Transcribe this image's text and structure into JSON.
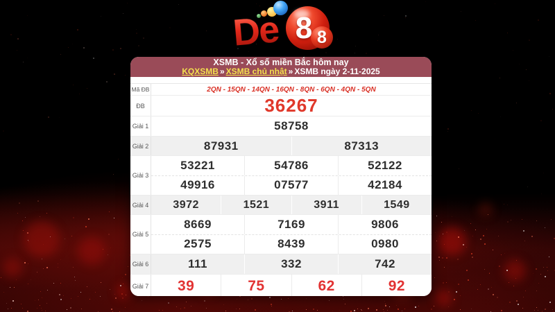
{
  "logo": {
    "de": "De",
    "eight_big": "8",
    "eight_small": "8"
  },
  "panel": {
    "header": {
      "title": "XSMB - Xổ số miền Bắc hôm nay",
      "breadcrumb": {
        "link1": "KQXSMB",
        "sep1": "»",
        "link2": "XSMB chủ nhật",
        "sep2": "»",
        "current": "XSMB ngày 2-11-2025"
      }
    },
    "rows": {
      "ma_db": {
        "label": "Mã ĐB",
        "value": "2QN - 15QN - 14QN - 16QN - 8QN - 6QN - 4QN - 5QN"
      },
      "db": {
        "label": "ĐB",
        "value": "36267"
      },
      "giai1": {
        "label": "Giải 1",
        "values": [
          "58758"
        ]
      },
      "giai2": {
        "label": "Giải 2",
        "values": [
          "87931",
          "87313"
        ]
      },
      "giai3": {
        "label": "Giải 3",
        "values": [
          [
            "53221",
            "54786",
            "52122"
          ],
          [
            "49916",
            "07577",
            "42184"
          ]
        ]
      },
      "giai4": {
        "label": "Giải 4",
        "values": [
          "3972",
          "1521",
          "3911",
          "1549"
        ]
      },
      "giai5": {
        "label": "Giải 5",
        "values": [
          [
            "8669",
            "7169",
            "9806"
          ],
          [
            "2575",
            "8439",
            "0980"
          ]
        ]
      },
      "giai6": {
        "label": "Giải 6",
        "values": [
          "111",
          "332",
          "742"
        ]
      },
      "giai7": {
        "label": "Giải 7",
        "values": [
          "39",
          "75",
          "62",
          "92"
        ]
      }
    }
  },
  "colors": {
    "header_bg": "#9a4b58",
    "link_yellow": "#f3e04e",
    "special_red": "#e0382a",
    "giai7_red": "#e23333",
    "code_red": "#d93025",
    "number_black": "#2e2e2e",
    "alt_row": "#f0f0f0"
  }
}
